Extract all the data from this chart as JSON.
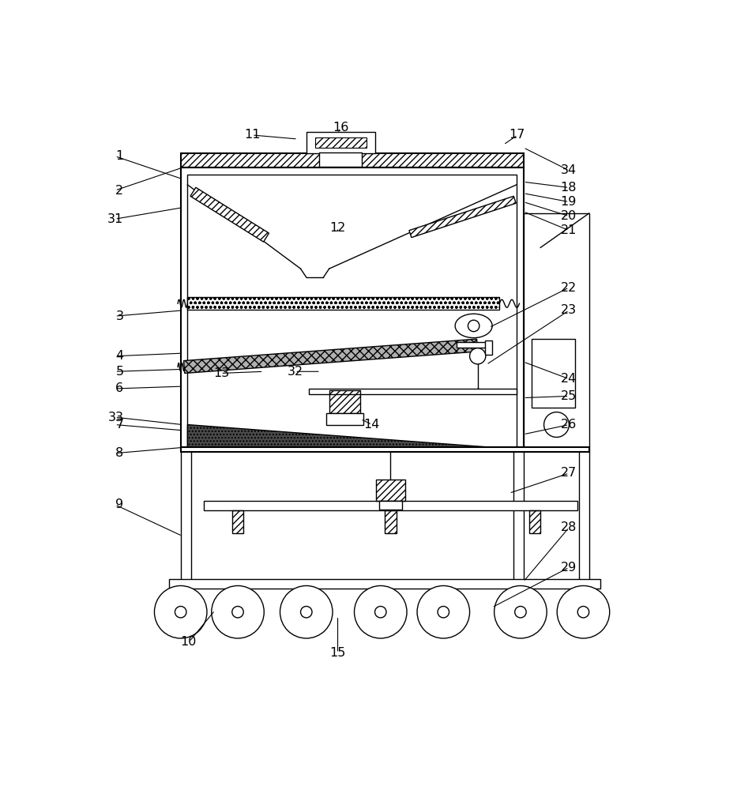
{
  "bg_color": "#ffffff",
  "line_color": "#000000",
  "figsize": [
    9.33,
    10.0
  ],
  "dpi": 100,
  "MLB": 0.155,
  "MRB": 0.755,
  "MTB": 0.905,
  "MBB": 0.415,
  "label_positions": {
    "1": [
      0.055,
      0.925,
      0.158,
      0.885,
      "right"
    ],
    "2": [
      0.055,
      0.865,
      0.158,
      0.905,
      "right"
    ],
    "31": [
      0.055,
      0.815,
      0.158,
      0.835,
      "right"
    ],
    "3": [
      0.055,
      0.645,
      0.158,
      0.655,
      "right"
    ],
    "4": [
      0.055,
      0.575,
      0.158,
      0.58,
      "right"
    ],
    "5": [
      0.055,
      0.548,
      0.158,
      0.552,
      "right"
    ],
    "6": [
      0.055,
      0.518,
      0.158,
      0.522,
      "right"
    ],
    "7": [
      0.055,
      0.455,
      0.158,
      0.445,
      "right"
    ],
    "33": [
      0.055,
      0.468,
      0.158,
      0.455,
      "right"
    ],
    "8": [
      0.055,
      0.405,
      0.158,
      0.415,
      "right"
    ],
    "9": [
      0.055,
      0.315,
      0.158,
      0.26,
      "right"
    ],
    "10": [
      0.155,
      0.075,
      0.215,
      0.13,
      "left"
    ],
    "11": [
      0.295,
      0.962,
      0.36,
      0.955,
      "right"
    ],
    "16": [
      0.435,
      0.975,
      0.43,
      0.965,
      "center"
    ],
    "17": [
      0.73,
      0.962,
      0.72,
      0.945,
      "left"
    ],
    "34": [
      0.82,
      0.9,
      0.755,
      0.94,
      "left"
    ],
    "18": [
      0.82,
      0.87,
      0.755,
      0.88,
      "left"
    ],
    "19": [
      0.82,
      0.845,
      0.755,
      0.86,
      "left"
    ],
    "20": [
      0.82,
      0.82,
      0.755,
      0.845,
      "left"
    ],
    "21": [
      0.82,
      0.795,
      0.755,
      0.828,
      "left"
    ],
    "12": [
      0.43,
      0.8,
      0.43,
      0.79,
      "center"
    ],
    "22": [
      0.82,
      0.695,
      0.695,
      0.625,
      "left"
    ],
    "13": [
      0.24,
      0.545,
      0.3,
      0.548,
      "right"
    ],
    "32": [
      0.37,
      0.548,
      0.4,
      0.548,
      "right"
    ],
    "23": [
      0.82,
      0.655,
      0.69,
      0.56,
      "left"
    ],
    "14": [
      0.49,
      0.455,
      0.47,
      0.465,
      "center"
    ],
    "24": [
      0.82,
      0.535,
      0.755,
      0.565,
      "left"
    ],
    "25": [
      0.82,
      0.505,
      0.755,
      0.502,
      "left"
    ],
    "26": [
      0.82,
      0.455,
      0.755,
      0.438,
      "left"
    ],
    "27": [
      0.82,
      0.37,
      0.73,
      0.335,
      "left"
    ],
    "15": [
      0.43,
      0.055,
      0.43,
      0.12,
      "center"
    ],
    "28": [
      0.82,
      0.275,
      0.755,
      0.18,
      "left"
    ],
    "29": [
      0.82,
      0.205,
      0.7,
      0.135,
      "left"
    ]
  }
}
